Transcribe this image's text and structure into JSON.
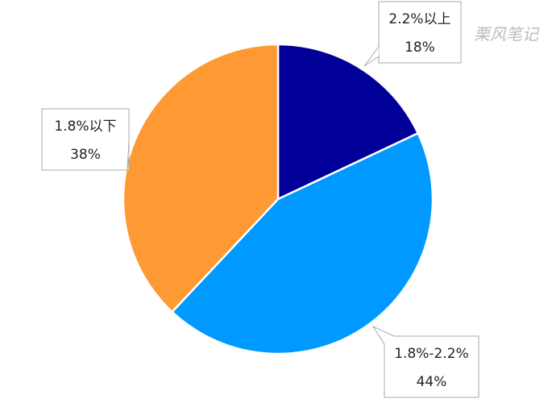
{
  "chart_data": {
    "type": "pie",
    "categories": [
      "2.2%以上",
      "1.8%-2.2%",
      "1.8%以下"
    ],
    "values": [
      18,
      44,
      38
    ],
    "value_labels": [
      "18%",
      "44%",
      "38%"
    ],
    "colors": [
      "#000099",
      "#0099ff",
      "#ff9933"
    ],
    "watermark": "栗风笔记"
  }
}
